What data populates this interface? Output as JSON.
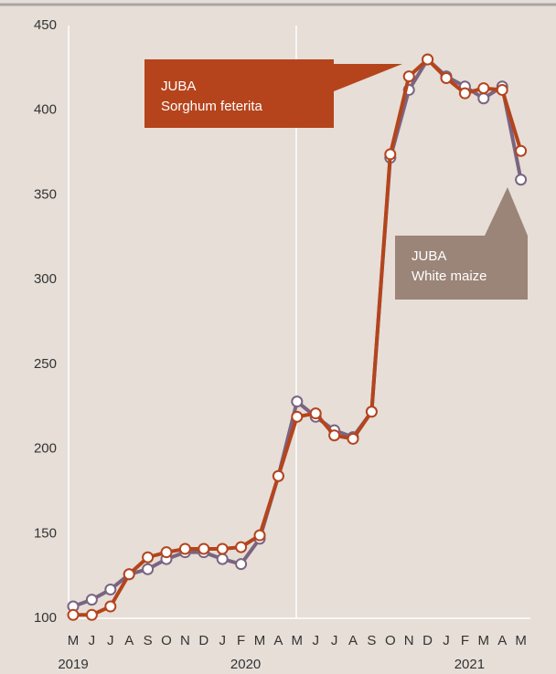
{
  "chart_data": {
    "type": "line",
    "categories": [
      "M",
      "J",
      "J",
      "A",
      "S",
      "O",
      "N",
      "D",
      "J",
      "F",
      "M",
      "A",
      "M",
      "J",
      "J",
      "A",
      "S",
      "O",
      "N",
      "D",
      "J",
      "F",
      "M",
      "A",
      "M"
    ],
    "year_labels": [
      {
        "label": "2019",
        "at": 0
      },
      {
        "label": "2020",
        "at": 9
      },
      {
        "label": "2021",
        "at": 21
      }
    ],
    "series": [
      {
        "name": "White maize",
        "color": "#7a6480",
        "values": [
          107,
          111,
          117,
          126,
          129,
          135,
          139,
          139,
          135,
          132,
          147,
          184,
          228,
          219,
          211,
          207,
          222,
          372,
          412,
          430,
          420,
          414,
          407,
          414,
          359
        ]
      },
      {
        "name": "Sorghum feterita",
        "color": "#b5441c",
        "values": [
          102,
          102,
          107,
          126,
          136,
          139,
          141,
          141,
          141,
          142,
          149,
          184,
          219,
          221,
          208,
          206,
          222,
          374,
          420,
          430,
          419,
          410,
          413,
          412,
          376
        ]
      }
    ],
    "annotations": [
      {
        "lines": [
          "JUBA",
          "Sorghum feterita"
        ],
        "color": "#b5441c"
      },
      {
        "lines": [
          "JUBA",
          "White maize"
        ],
        "color": "#9b8478"
      }
    ],
    "ylim": [
      100,
      450
    ],
    "yticks": [
      100,
      150,
      200,
      250,
      300,
      350,
      400,
      450
    ]
  }
}
